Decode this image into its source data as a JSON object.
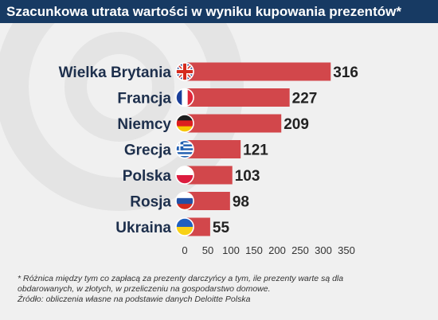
{
  "title": "Szacunkowa utrata wartości w wyniku kupowania prezentów*",
  "colors": {
    "title_bar": "#173a63",
    "bar": "#d2474b",
    "background": "#f0f0f0",
    "watermark": "#e2e2e2"
  },
  "chart_data": {
    "type": "bar",
    "orientation": "horizontal",
    "title": "Szacunkowa utrata wartości w wyniku kupowania prezentów*",
    "categories": [
      "Wielka Brytania",
      "Francja",
      "Niemcy",
      "Grecja",
      "Polska",
      "Rosja",
      "Ukraina"
    ],
    "flags": [
      "uk-flag-icon",
      "france-flag-icon",
      "germany-flag-icon",
      "greece-flag-icon",
      "poland-flag-icon",
      "russia-flag-icon",
      "ukraine-flag-icon"
    ],
    "values": [
      316,
      227,
      209,
      121,
      103,
      98,
      55
    ],
    "xticks": [
      0,
      50,
      100,
      150,
      200,
      250,
      300,
      350
    ],
    "xlim": [
      0,
      350
    ],
    "grid": false,
    "value_labels": true
  },
  "footnote": {
    "line1": "* Różnica między tym co zapłacą za prezenty darczyńcy a tym, ile prezenty warte są dla",
    "line2": "obdarowanych, w złotych, w przeliczeniu na gospodarstwo domowe.",
    "source": "Źródło: obliczenia własne na podstawie danych Deloitte Polska"
  }
}
